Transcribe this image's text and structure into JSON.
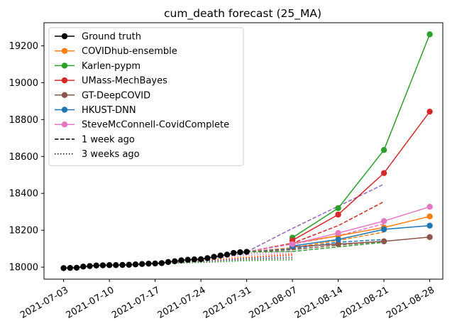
{
  "chart_data": {
    "type": "line",
    "title": "cum_death forecast (25_MA)",
    "xlabel": "",
    "ylabel": "",
    "x_ticks": [
      "2021-07-03",
      "2021-07-10",
      "2021-07-17",
      "2021-07-24",
      "2021-07-31",
      "2021-08-07",
      "2021-08-14",
      "2021-08-21",
      "2021-08-28"
    ],
    "xlim": [
      "2021-06-30",
      "2021-08-30"
    ],
    "y_ticks": [
      18000,
      18200,
      18400,
      18600,
      18800,
      19000,
      19200
    ],
    "ylim": [
      17935,
      19325
    ],
    "grid": false,
    "legend_position": "upper left",
    "ground_truth": {
      "name": "Ground truth",
      "color": "#000000",
      "dates": [
        "2021-07-03",
        "2021-07-04",
        "2021-07-05",
        "2021-07-06",
        "2021-07-07",
        "2021-07-08",
        "2021-07-09",
        "2021-07-10",
        "2021-07-11",
        "2021-07-12",
        "2021-07-13",
        "2021-07-14",
        "2021-07-15",
        "2021-07-16",
        "2021-07-17",
        "2021-07-18",
        "2021-07-19",
        "2021-07-20",
        "2021-07-21",
        "2021-07-22",
        "2021-07-23",
        "2021-07-24",
        "2021-07-25",
        "2021-07-26",
        "2021-07-27",
        "2021-07-28",
        "2021-07-29",
        "2021-07-30",
        "2021-07-31"
      ],
      "values": [
        17995,
        17996,
        17997,
        18003,
        18006,
        18009,
        18010,
        18011,
        18011,
        18012,
        18013,
        18015,
        18017,
        18019,
        18020,
        18022,
        18028,
        18032,
        18037,
        18040,
        18042,
        18043,
        18049,
        18056,
        18063,
        18068,
        18077,
        18081,
        18083
      ]
    },
    "series": [
      {
        "name": "COVIDhub-ensemble",
        "color": "#ff7f0e",
        "dates": [
          "2021-08-07",
          "2021-08-14",
          "2021-08-21",
          "2021-08-28"
        ],
        "values": [
          18130,
          18170,
          18215,
          18275
        ]
      },
      {
        "name": "Karlen-pypm",
        "color": "#2ca02c",
        "dates": [
          "2021-08-07",
          "2021-08-14",
          "2021-08-21",
          "2021-08-28"
        ],
        "values": [
          18160,
          18320,
          18635,
          19262
        ]
      },
      {
        "name": "UMass-MechBayes",
        "color": "#d62728",
        "dates": [
          "2021-08-07",
          "2021-08-14",
          "2021-08-21",
          "2021-08-28"
        ],
        "values": [
          18145,
          18285,
          18510,
          18843
        ]
      },
      {
        "name": "GT-DeepCOVID",
        "color": "#8c564b",
        "dates": [
          "2021-08-07",
          "2021-08-14",
          "2021-08-21",
          "2021-08-28"
        ],
        "values": [
          18110,
          18125,
          18140,
          18163
        ]
      },
      {
        "name": "HKUST-DNN",
        "color": "#1f77b4",
        "dates": [
          "2021-08-07",
          "2021-08-14",
          "2021-08-21",
          "2021-08-28"
        ],
        "values": [
          18115,
          18150,
          18205,
          18225
        ]
      },
      {
        "name": "SteveMcConnell-CovidComplete",
        "color": "#e377c2",
        "dates": [
          "2021-08-07",
          "2021-08-14",
          "2021-08-21",
          "2021-08-28"
        ],
        "values": [
          18125,
          18185,
          18250,
          18327
        ]
      }
    ],
    "one_week_ago": [
      {
        "color": "#9467bd",
        "dates": [
          "2021-07-31",
          "2021-08-07",
          "2021-08-14",
          "2021-08-21"
        ],
        "values": [
          18083,
          18210,
          18330,
          18450
        ]
      },
      {
        "color": "#d62728",
        "dates": [
          "2021-07-31",
          "2021-08-07",
          "2021-08-14",
          "2021-08-21"
        ],
        "values": [
          18083,
          18130,
          18225,
          18355
        ]
      },
      {
        "color": "#e377c2",
        "dates": [
          "2021-07-31",
          "2021-08-07",
          "2021-08-14",
          "2021-08-21"
        ],
        "values": [
          18083,
          18125,
          18170,
          18235
        ]
      },
      {
        "color": "#ff7f0e",
        "dates": [
          "2021-07-31",
          "2021-08-07",
          "2021-08-14",
          "2021-08-21"
        ],
        "values": [
          18083,
          18105,
          18145,
          18190
        ]
      },
      {
        "color": "#1f77b4",
        "dates": [
          "2021-07-31",
          "2021-08-07",
          "2021-08-14",
          "2021-08-21"
        ],
        "values": [
          18083,
          18100,
          18135,
          18150
        ]
      },
      {
        "color": "#8c564b",
        "dates": [
          "2021-07-31",
          "2021-08-07",
          "2021-08-14",
          "2021-08-21"
        ],
        "values": [
          18083,
          18095,
          18120,
          18140
        ]
      },
      {
        "color": "#2ca02c",
        "dates": [
          "2021-07-31",
          "2021-08-07",
          "2021-08-14",
          "2021-08-21"
        ],
        "values": [
          18083,
          18085,
          18110,
          18135
        ]
      }
    ],
    "three_weeks_ago": [
      {
        "color": "#9467bd",
        "dates": [
          "2021-07-17",
          "2021-07-24",
          "2021-07-31",
          "2021-08-07"
        ],
        "values": [
          18020,
          18045,
          18075,
          18085
        ]
      },
      {
        "color": "#e377c2",
        "dates": [
          "2021-07-17",
          "2021-07-24",
          "2021-07-31",
          "2021-08-07"
        ],
        "values": [
          18020,
          18040,
          18065,
          18075
        ]
      },
      {
        "color": "#ff7f0e",
        "dates": [
          "2021-07-17",
          "2021-07-24",
          "2021-07-31",
          "2021-08-07"
        ],
        "values": [
          18020,
          18035,
          18055,
          18070
        ]
      },
      {
        "color": "#d62728",
        "dates": [
          "2021-07-17",
          "2021-07-24",
          "2021-07-31",
          "2021-08-07"
        ],
        "values": [
          18020,
          18032,
          18050,
          18065
        ]
      },
      {
        "color": "#1f77b4",
        "dates": [
          "2021-07-17",
          "2021-07-24",
          "2021-07-31",
          "2021-08-07"
        ],
        "values": [
          18020,
          18030,
          18045,
          18055
        ]
      },
      {
        "color": "#8c564b",
        "dates": [
          "2021-07-17",
          "2021-07-24",
          "2021-07-31",
          "2021-08-07"
        ],
        "values": [
          18020,
          18027,
          18040,
          18048
        ]
      },
      {
        "color": "#2ca02c",
        "dates": [
          "2021-07-17",
          "2021-07-24",
          "2021-07-31",
          "2021-08-07"
        ],
        "values": [
          18020,
          18025,
          18035,
          18040
        ]
      }
    ],
    "legend": [
      {
        "label": "Ground truth",
        "color": "#000000",
        "style": "marker"
      },
      {
        "label": "COVIDhub-ensemble",
        "color": "#ff7f0e",
        "style": "marker"
      },
      {
        "label": "Karlen-pypm",
        "color": "#2ca02c",
        "style": "marker"
      },
      {
        "label": "UMass-MechBayes",
        "color": "#d62728",
        "style": "marker"
      },
      {
        "label": "GT-DeepCOVID",
        "color": "#8c564b",
        "style": "marker"
      },
      {
        "label": "HKUST-DNN",
        "color": "#1f77b4",
        "style": "marker"
      },
      {
        "label": "SteveMcConnell-CovidComplete",
        "color": "#e377c2",
        "style": "marker"
      },
      {
        "label": "1 week ago",
        "color": "#000000",
        "style": "dashed"
      },
      {
        "label": "3 weeks ago",
        "color": "#000000",
        "style": "dotted"
      }
    ]
  }
}
